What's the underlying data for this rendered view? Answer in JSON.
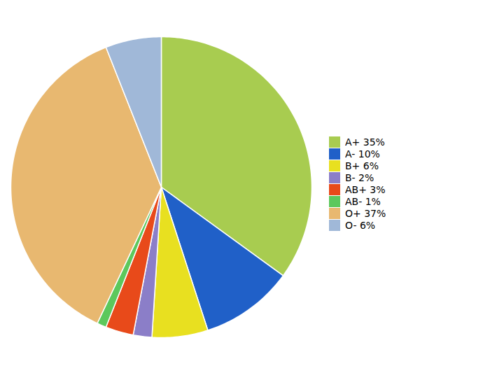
{
  "chart_data": {
    "type": "pie",
    "categories": [
      "A+ 35%",
      "A- 10%",
      "B+ 6%",
      "B- 2%",
      "AB+ 3%",
      "AB- 1%",
      "O+ 37%",
      "O- 6%"
    ],
    "values": [
      35,
      10,
      6,
      2,
      3,
      1,
      37,
      6
    ],
    "colors": [
      "#a8cc50",
      "#2060c8",
      "#e8e020",
      "#8b7ec8",
      "#e84a1a",
      "#5cc85c",
      "#e8b870",
      "#a0b8d8"
    ],
    "legend": "right"
  }
}
